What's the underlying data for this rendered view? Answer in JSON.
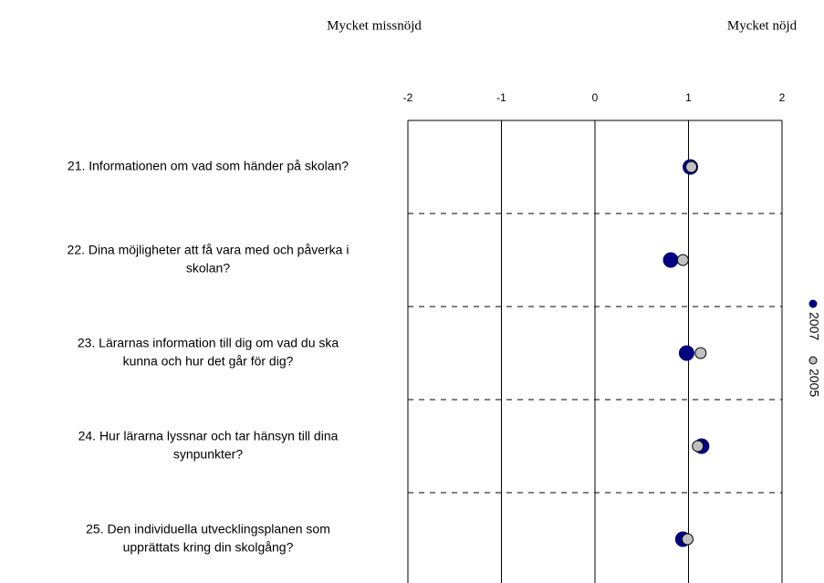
{
  "chart_data": {
    "type": "dot",
    "left_label": "Mycket missnöjd",
    "right_label": "Mycket nöjd",
    "categories": [
      [
        "21. Informationen om vad som händer på skolan?"
      ],
      [
        "22. Dina möjligheter att få vara med och påverka i",
        "skolan?"
      ],
      [
        "23. Lärarnas information till dig om vad du ska",
        "kunna och hur det går för dig?"
      ],
      [
        "24. Hur lärarna lyssnar och tar hänsyn till dina",
        "synpunkter?"
      ],
      [
        "25. Den individuella utvecklingsplanen som",
        "upprättats kring din skolgång?"
      ]
    ],
    "series": [
      {
        "name": "2007",
        "color": "#000080",
        "values": [
          1.02,
          0.81,
          0.98,
          1.14,
          0.94
        ]
      },
      {
        "name": "2005",
        "color": "#c0c0c0",
        "values": [
          1.03,
          0.94,
          1.13,
          1.1,
          0.99
        ]
      }
    ],
    "xlim": [
      -2,
      2
    ],
    "xticks": [
      -2,
      -1,
      0,
      1,
      2
    ],
    "grid": true,
    "legend": "right"
  }
}
